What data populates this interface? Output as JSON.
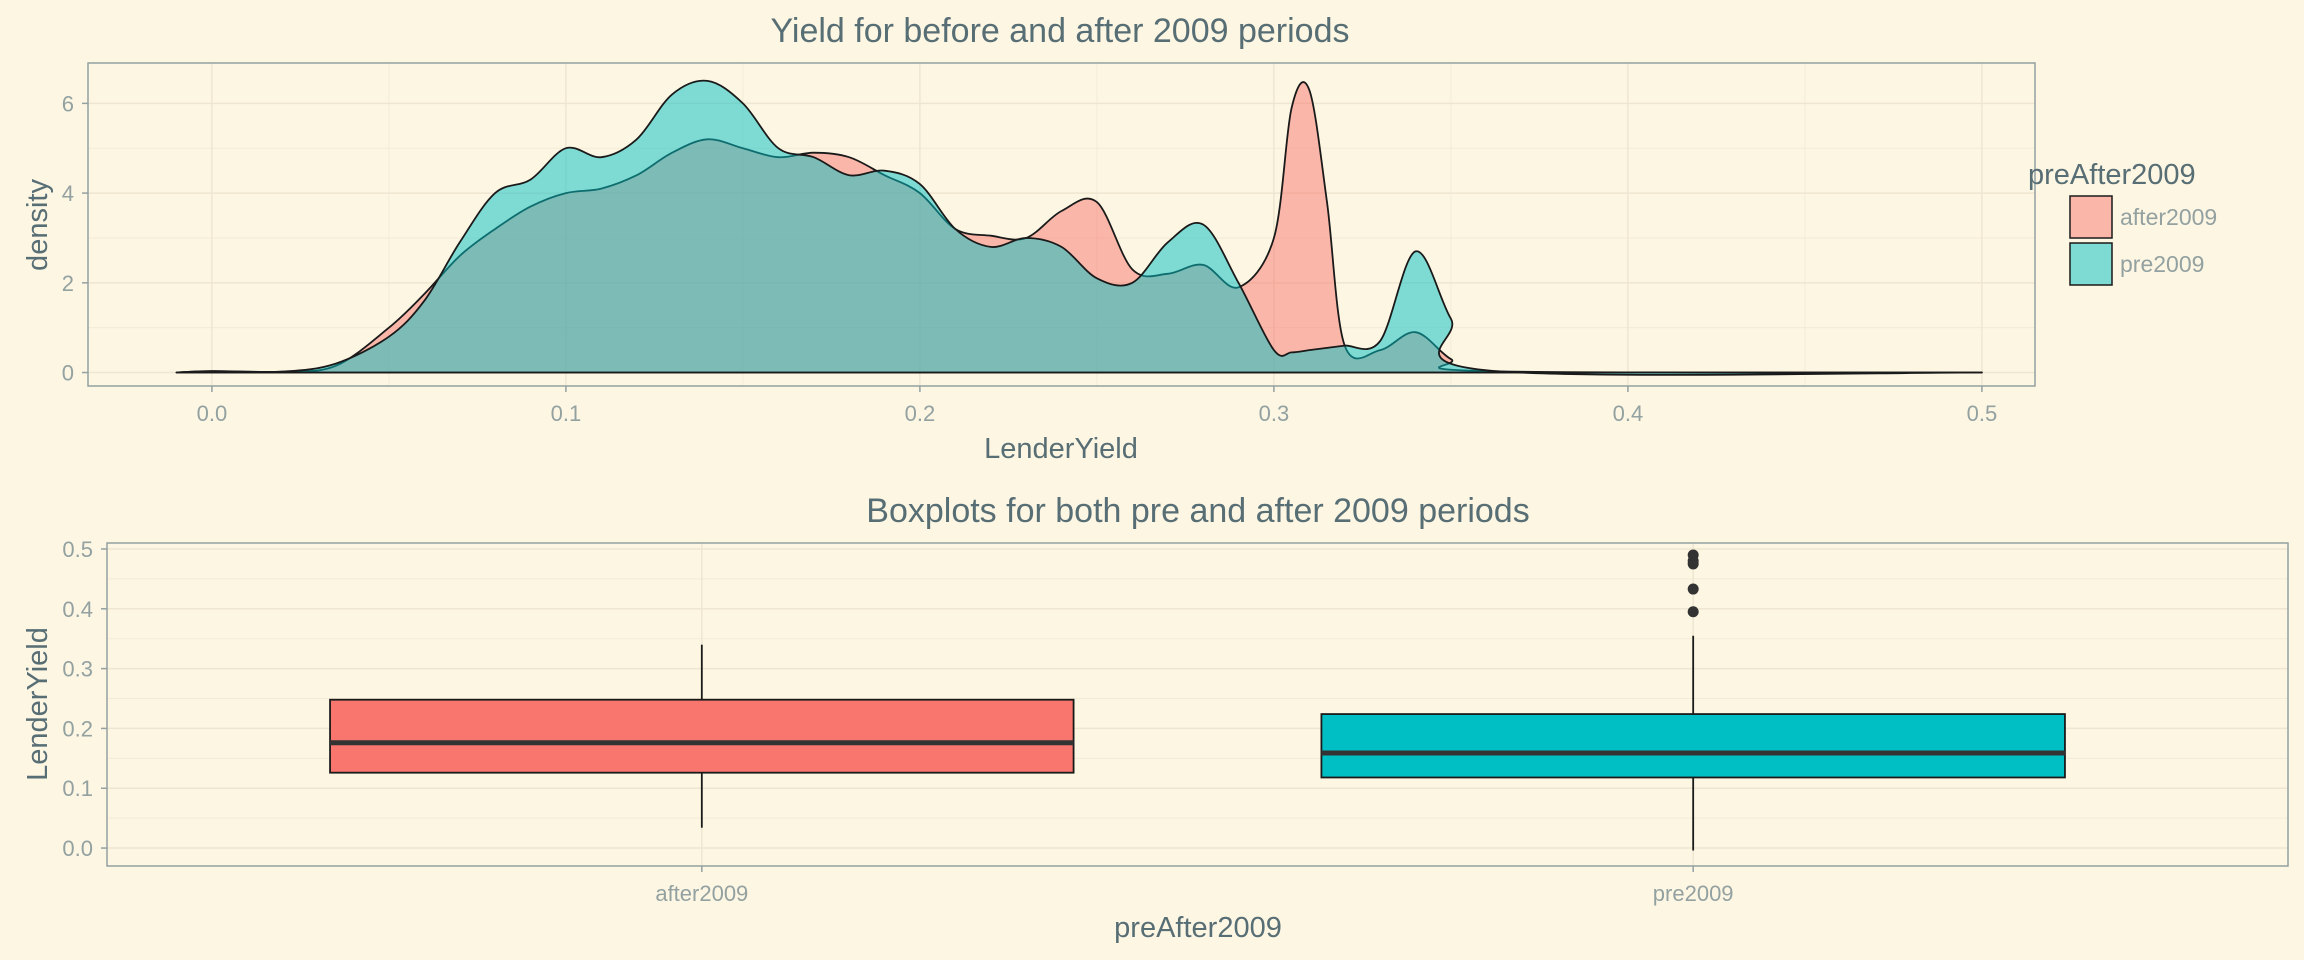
{
  "chart_data": [
    {
      "type": "area",
      "title": "Yield for before and after 2009 periods",
      "xlabel": "LenderYield",
      "ylabel": "density",
      "xlim": [
        -0.035,
        0.515
      ],
      "ylim": [
        -0.3,
        6.9
      ],
      "xticks": [
        0.0,
        0.1,
        0.2,
        0.3,
        0.4,
        0.5
      ],
      "xtick_labels": [
        "0.0",
        "0.1",
        "0.2",
        "0.3",
        "0.4",
        "0.5"
      ],
      "yticks": [
        0,
        2,
        4,
        6
      ],
      "ytick_labels": [
        "0",
        "2",
        "4",
        "6"
      ],
      "grid": true,
      "legend": {
        "title": "preAfter2009",
        "position": "right"
      },
      "series": [
        {
          "name": "after2009",
          "color": "#f8766d",
          "x": [
            -0.01,
            0.0,
            0.02,
            0.035,
            0.05,
            0.06,
            0.07,
            0.08,
            0.09,
            0.1,
            0.11,
            0.12,
            0.13,
            0.14,
            0.15,
            0.16,
            0.17,
            0.18,
            0.19,
            0.2,
            0.21,
            0.22,
            0.23,
            0.24,
            0.25,
            0.26,
            0.27,
            0.28,
            0.29,
            0.3,
            0.305,
            0.31,
            0.315,
            0.32,
            0.33,
            0.34,
            0.35,
            0.36,
            0.5
          ],
          "y": [
            0.0,
            0.03,
            0.02,
            0.15,
            1.0,
            1.75,
            2.6,
            3.2,
            3.7,
            4.0,
            4.1,
            4.4,
            4.9,
            5.2,
            5.0,
            4.8,
            4.9,
            4.8,
            4.4,
            4.0,
            3.2,
            3.05,
            3.0,
            3.6,
            3.8,
            2.3,
            2.2,
            2.4,
            1.9,
            3.0,
            5.9,
            6.3,
            3.8,
            0.6,
            0.5,
            0.9,
            0.3,
            0.03,
            0.0
          ]
        },
        {
          "name": "pre2009",
          "color": "#00bfc4",
          "x": [
            -0.01,
            0.0,
            0.02,
            0.035,
            0.05,
            0.06,
            0.07,
            0.08,
            0.09,
            0.1,
            0.11,
            0.12,
            0.13,
            0.14,
            0.15,
            0.16,
            0.17,
            0.18,
            0.19,
            0.2,
            0.21,
            0.22,
            0.23,
            0.24,
            0.25,
            0.26,
            0.27,
            0.28,
            0.29,
            0.3,
            0.305,
            0.31,
            0.315,
            0.32,
            0.33,
            0.34,
            0.35,
            0.36,
            0.5
          ],
          "y": [
            0.0,
            0.03,
            0.02,
            0.2,
            0.8,
            1.6,
            2.9,
            4.0,
            4.3,
            5.0,
            4.8,
            5.2,
            6.2,
            6.5,
            6.0,
            5.0,
            4.8,
            4.4,
            4.5,
            4.2,
            3.2,
            2.8,
            3.0,
            2.8,
            2.1,
            2.0,
            2.9,
            3.3,
            2.0,
            0.5,
            0.45,
            0.5,
            0.55,
            0.6,
            0.7,
            2.7,
            1.2,
            0.05,
            0.0
          ]
        }
      ]
    },
    {
      "type": "boxplot",
      "title": "Boxplots for both pre and after 2009 periods",
      "xlabel": "preAfter2009",
      "ylabel": "LenderYield",
      "categories": [
        "after2009",
        "pre2009"
      ],
      "ylim": [
        -0.03,
        0.51
      ],
      "yticks": [
        0.0,
        0.1,
        0.2,
        0.3,
        0.4,
        0.5
      ],
      "ytick_labels": [
        "0.0",
        "0.1",
        "0.2",
        "0.3",
        "0.4",
        "0.5"
      ],
      "grid": true,
      "boxes": [
        {
          "name": "after2009",
          "color": "#f8766d",
          "whisker_low": 0.034,
          "q1": 0.126,
          "median": 0.176,
          "q3": 0.248,
          "whisker_high": 0.34,
          "outliers": []
        },
        {
          "name": "pre2009",
          "color": "#00bfc4",
          "whisker_low": -0.004,
          "q1": 0.118,
          "median": 0.159,
          "q3": 0.224,
          "whisker_high": 0.355,
          "outliers": [
            0.395,
            0.433,
            0.475,
            0.48,
            0.49
          ]
        }
      ]
    }
  ]
}
